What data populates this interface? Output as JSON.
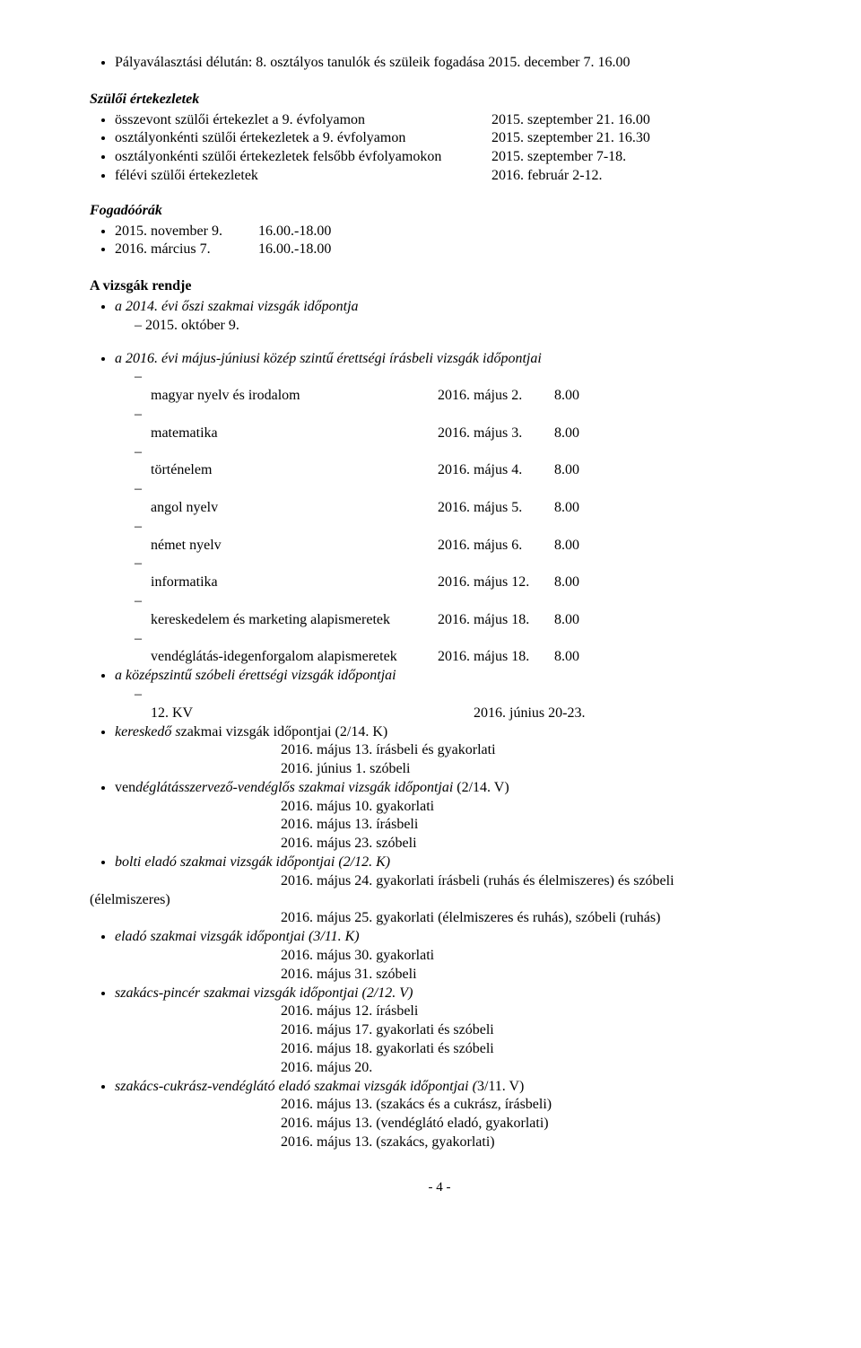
{
  "top_item": "Pályaválasztási délután: 8. osztályos tanulók és szüleik fogadása 2015. december 7. 16.00",
  "szuloi_title": "Szülői értekezletek",
  "szuloi_items": [
    {
      "label": "összevont szülői értekezlet a 9. évfolyamon",
      "date": "2015. szeptember 21. 16.00"
    },
    {
      "label": "osztályonkénti szülői értekezletek a 9. évfolyamon",
      "date": "2015. szeptember 21. 16.30"
    },
    {
      "label": "osztályonkénti szülői értekezletek felsőbb évfolyamokon",
      "date": "2015. szeptember 7-18."
    },
    {
      "label": "félévi szülői értekezletek",
      "date": "2016. február 2-12."
    }
  ],
  "fogadoorak_title": "Fogadóórák",
  "fogadoorak_items": [
    {
      "label": "2015. november 9.",
      "time": "16.00.-18.00"
    },
    {
      "label": "2016. március 7.",
      "time": "16.00.-18.00"
    }
  ],
  "vizsgak_title": "A vizsgák rendje",
  "vizsgak_oszi_intro": "a 2014. évi őszi szakmai vizsgák időpontja",
  "vizsgak_oszi_item": "2015. október 9.",
  "irasbeli_intro": "a 2016. évi május-júniusi közép szintű érettségi írásbeli vizsgák időpontjai",
  "irasbeli_items": [
    {
      "label": "magyar nyelv és irodalom",
      "date": "2016. május 2.",
      "time": "8.00"
    },
    {
      "label": "matematika",
      "date": "2016. május 3.",
      "time": "8.00"
    },
    {
      "label": "történelem",
      "date": "2016. május 4.",
      "time": "8.00"
    },
    {
      "label": "angol nyelv",
      "date": "2016. május 5.",
      "time": "8.00"
    },
    {
      "label": "német nyelv",
      "date": "2016. május 6.",
      "time": "8.00"
    },
    {
      "label": "informatika",
      "date": "2016. május 12.",
      "time": "8.00"
    },
    {
      "label": "kereskedelem és marketing alapismeretek",
      "date": "2016. május 18.",
      "time": "8.00"
    },
    {
      "label": "vendéglátás-idegenforgalom alapismeretek",
      "date": "2016. május 18.",
      "time": "8.00"
    }
  ],
  "szobeli_intro": "a középszintű szóbeli érettségi vizsgák időpontjai",
  "szobeli_item": {
    "label": "12. KV",
    "date": "2016. június 20-23."
  },
  "keresk_intro": "kereskedő szakmai vizsgák időpontjai (2/14. K)",
  "keresk_lines": [
    "2016. május 13. írásbeli és gyakorlati",
    "2016. június 1. szóbeli"
  ],
  "vendeg_intro": "vendéglátásszervező-vendéglős szakmai vizsgák időpontjai (2/14. V)",
  "vendeg_lines": [
    "2016. május 10. gyakorlati",
    "2016. május 13. írásbeli",
    "2016. május 23. szóbeli"
  ],
  "bolti_intro": "bolti eladó szakmai vizsgák időpontjai (2/12. K)",
  "bolti_line1": "2016. május 24. gyakorlati írásbeli (ruhás és élelmiszeres) és szóbeli",
  "bolti_paren": "(élelmiszeres)",
  "bolti_line2": "2016. május 25. gyakorlati (élelmiszeres és ruhás), szóbeli (ruhás)",
  "elado_intro": "eladó szakmai vizsgák időpontjai (3/11. K)",
  "elado_lines": [
    "2016. május 30. gyakorlati",
    "2016. május 31. szóbeli"
  ],
  "szakacs_intro": "szakács-pincér szakmai vizsgák időpontjai (2/12. V)",
  "szakacs_lines": [
    "2016. május 12. írásbeli",
    "2016. május 17. gyakorlati és szóbeli",
    "2016. május 18. gyakorlati és szóbeli",
    "2016. május 20."
  ],
  "cukrasz_intro": "szakács-cukrász-vendéglátó eladó szakmai vizsgák időpontjai (3/11. V)",
  "cukrasz_lines": [
    "2016. május 13. (szakács és a cukrász, írásbeli)",
    "2016. május 13. (vendéglátó eladó, gyakorlati)",
    "2016. május 13. (szakács, gyakorlati)"
  ],
  "footer": "- 4 -",
  "layout": {
    "szuloi_label_w": 420,
    "fogado_label_w": 160,
    "irasbeli_label_w": 320,
    "irasbeli_date_w": 130,
    "szobeli_label_w": 360
  }
}
